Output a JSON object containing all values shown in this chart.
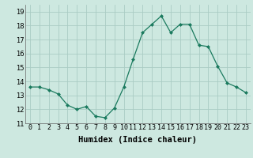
{
  "x": [
    0,
    1,
    2,
    3,
    4,
    5,
    6,
    7,
    8,
    9,
    10,
    11,
    12,
    13,
    14,
    15,
    16,
    17,
    18,
    19,
    20,
    21,
    22,
    23
  ],
  "y": [
    13.6,
    13.6,
    13.4,
    13.1,
    12.3,
    12.0,
    12.2,
    11.5,
    11.4,
    12.1,
    13.6,
    15.6,
    17.5,
    18.1,
    18.7,
    17.5,
    18.1,
    18.1,
    16.6,
    16.5,
    15.1,
    13.9,
    13.6,
    13.2
  ],
  "line_color": "#1a7a5e",
  "marker": "D",
  "marker_size": 2.0,
  "bg_color": "#cde8e0",
  "grid_color": "#aaccc4",
  "xlabel": "Humidex (Indice chaleur)",
  "xlim": [
    -0.5,
    23.5
  ],
  "ylim": [
    11,
    19.5
  ],
  "yticks": [
    11,
    12,
    13,
    14,
    15,
    16,
    17,
    18,
    19
  ],
  "xtick_labels": [
    "0",
    "1",
    "2",
    "3",
    "4",
    "5",
    "6",
    "7",
    "8",
    "9",
    "10",
    "11",
    "12",
    "13",
    "14",
    "15",
    "16",
    "17",
    "18",
    "19",
    "20",
    "21",
    "22",
    "23"
  ],
  "tick_fontsize": 6.0,
  "xlabel_fontsize": 7.5
}
